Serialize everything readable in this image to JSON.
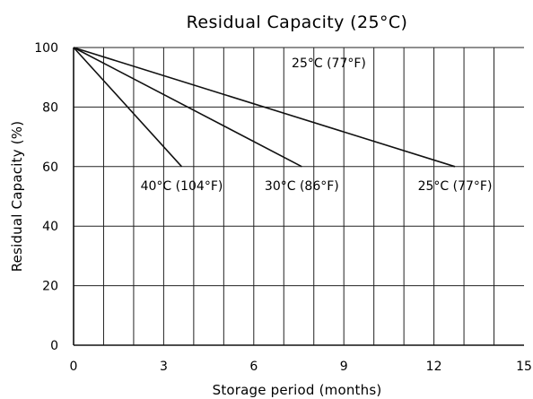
{
  "chart_data": {
    "type": "line",
    "title": "Residual Capacity (25°C)",
    "xlabel": "Storage period (months)",
    "ylabel": "Residual Capacity (%)",
    "xlim": [
      0,
      15
    ],
    "ylim": [
      0,
      100
    ],
    "x_ticks": [
      0,
      3,
      6,
      9,
      12,
      15
    ],
    "y_ticks": [
      0,
      20,
      40,
      60,
      80,
      100
    ],
    "grid": true,
    "series": [
      {
        "name": "40°C (104°F)",
        "x": [
          0,
          3.6
        ],
        "y": [
          100,
          60
        ]
      },
      {
        "name": "30°C (86°F)",
        "x": [
          0,
          7.6
        ],
        "y": [
          100,
          60
        ]
      },
      {
        "name": "25°C (77°F)",
        "x": [
          0,
          12.7
        ],
        "y": [
          100,
          60
        ]
      }
    ],
    "annotations": [
      {
        "text": "25°C (77°F)",
        "x": 8.5,
        "y": 93.3
      },
      {
        "text": "40°C (104°F)",
        "x": 3.6,
        "y": 52.1
      },
      {
        "text": "30°C (86°F)",
        "x": 7.6,
        "y": 52.1
      },
      {
        "text": "25°C (77°F)",
        "x": 12.7,
        "y": 52.1
      }
    ]
  }
}
